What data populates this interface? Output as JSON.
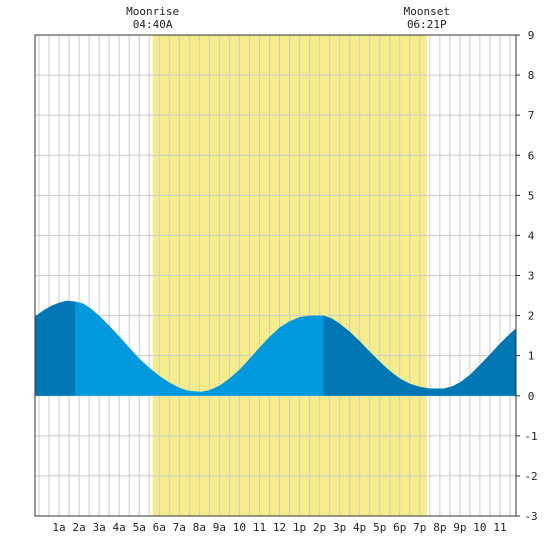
{
  "chart_data": {
    "type": "area",
    "title": "",
    "xlabel": "",
    "ylabel": "",
    "x_unit": "hour of day",
    "xlim": [
      -1.2,
      22.8
    ],
    "ylim": [
      -3,
      9
    ],
    "y_ticks": [
      -3,
      -2,
      -1,
      0,
      1,
      2,
      3,
      4,
      5,
      6,
      7,
      8,
      9
    ],
    "x_ticks": [
      {
        "x": 0,
        "label": "1a"
      },
      {
        "x": 1,
        "label": "2a"
      },
      {
        "x": 2,
        "label": "3a"
      },
      {
        "x": 3,
        "label": "4a"
      },
      {
        "x": 4,
        "label": "5a"
      },
      {
        "x": 5,
        "label": "6a"
      },
      {
        "x": 6,
        "label": "7a"
      },
      {
        "x": 7,
        "label": "8a"
      },
      {
        "x": 8,
        "label": "9a"
      },
      {
        "x": 9,
        "label": "10"
      },
      {
        "x": 10,
        "label": "11"
      },
      {
        "x": 11,
        "label": "12"
      },
      {
        "x": 12,
        "label": "1p"
      },
      {
        "x": 13,
        "label": "2p"
      },
      {
        "x": 14,
        "label": "3p"
      },
      {
        "x": 15,
        "label": "4p"
      },
      {
        "x": 16,
        "label": "5p"
      },
      {
        "x": 17,
        "label": "6p"
      },
      {
        "x": 18,
        "label": "7p"
      },
      {
        "x": 19,
        "label": "8p"
      },
      {
        "x": 20,
        "label": "9p"
      },
      {
        "x": 21,
        "label": "10"
      },
      {
        "x": 22,
        "label": "11"
      }
    ],
    "grid": true,
    "moonrise": {
      "label": "Moonrise",
      "time": "04:40A",
      "x": 4.67
    },
    "moonset": {
      "label": "Moonset",
      "time": "06:21P",
      "x": 18.35
    },
    "tide_extremes": [
      {
        "x": 0.8,
        "y": 2.35
      },
      {
        "x": 7.1,
        "y": 0.1
      },
      {
        "x": 13.2,
        "y": 2.0
      },
      {
        "x": 19.2,
        "y": 0.18
      }
    ],
    "series": [
      {
        "x": [
          -1.2,
          -0.8,
          -0.4,
          0.0,
          0.4,
          0.8,
          1.2,
          1.6,
          2.0,
          2.5,
          3.0,
          3.5,
          4.0,
          4.5,
          5.0,
          5.5,
          6.0,
          6.5,
          7.1,
          7.5,
          8.0,
          8.5,
          9.0,
          9.5,
          10.0,
          10.5,
          11.0,
          11.5,
          12.0,
          12.5,
          13.2,
          13.6,
          14.0,
          14.5,
          15.0,
          15.5,
          16.0,
          16.5,
          17.0,
          17.5,
          18.0,
          18.5,
          19.2,
          19.6,
          20.0,
          20.5,
          21.0,
          21.5,
          22.0,
          22.4,
          22.8
        ],
        "y": [
          1.98,
          2.12,
          2.24,
          2.32,
          2.37,
          2.35,
          2.3,
          2.17,
          2.0,
          1.75,
          1.48,
          1.2,
          0.93,
          0.7,
          0.5,
          0.33,
          0.2,
          0.12,
          0.1,
          0.14,
          0.25,
          0.43,
          0.65,
          0.92,
          1.2,
          1.47,
          1.7,
          1.86,
          1.96,
          2.0,
          2.0,
          1.93,
          1.8,
          1.6,
          1.36,
          1.1,
          0.85,
          0.62,
          0.43,
          0.3,
          0.22,
          0.18,
          0.18,
          0.23,
          0.33,
          0.52,
          0.77,
          1.03,
          1.3,
          1.5,
          1.68
        ]
      }
    ],
    "colors": {
      "tide": "#0099dd",
      "tide_dark": "#0077b5",
      "moon_band": "#f5ee88",
      "grid": "#cccccc",
      "night_band_x": [
        [
          -1.2,
          0.8
        ],
        [
          13.2,
          19.2
        ],
        [
          19.2,
          22.8
        ]
      ]
    }
  }
}
